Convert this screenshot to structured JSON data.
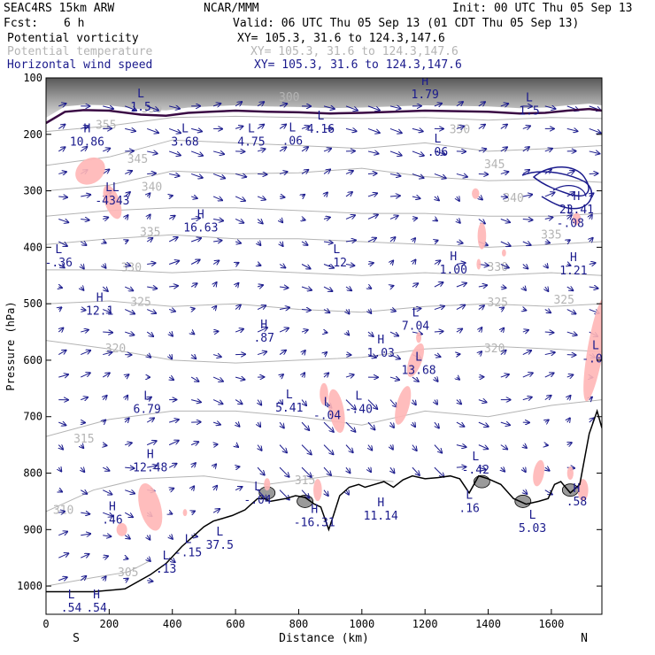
{
  "header": {
    "model": "SEAC4RS 15km ARW",
    "institution": "NCAR/MMM",
    "init": "Init: 00 UTC Thu 05 Sep 13",
    "fcst_label": "Fcst:",
    "fcst_value": "6 h",
    "valid": "Valid: 06 UTC Thu 05 Sep 13 (01 CDT Thu 05 Sep 13)"
  },
  "fields": [
    {
      "name": "Potential vorticity",
      "xy": "XY= 105.3, 31.6 to 124.3,147.6",
      "color": "#000000"
    },
    {
      "name": "Potential temperature",
      "xy": "XY= 105.3, 31.6 to 124.3,147.6",
      "color": "#b4b4b4"
    },
    {
      "name": "Horizontal wind speed",
      "xy": "XY= 105.3, 31.6 to 124.3,147.6",
      "color": "#1a1a8c"
    }
  ],
  "chart_data": {
    "type": "cross-section",
    "xlabel": "Distance (km)",
    "ylabel": "Pressure (hPa)",
    "xlim": [
      0,
      1760
    ],
    "ylim": [
      1050,
      100
    ],
    "x_ticks": [
      0,
      200,
      400,
      600,
      800,
      1000,
      1200,
      1400,
      1600
    ],
    "y_ticks": [
      100,
      200,
      300,
      400,
      500,
      600,
      700,
      800,
      900,
      1000
    ],
    "endpoint_left": "S",
    "endpoint_right": "N",
    "theta_labels": [
      {
        "text": "355",
        "x": 190,
        "p": 182
      },
      {
        "text": "350",
        "x": 335,
        "p": 153
      },
      {
        "text": "345",
        "x": 290,
        "p": 243
      },
      {
        "text": "340",
        "x": 335,
        "p": 292
      },
      {
        "text": "335",
        "x": 330,
        "p": 372
      },
      {
        "text": "330",
        "x": 270,
        "p": 435
      },
      {
        "text": "325",
        "x": 300,
        "p": 496
      },
      {
        "text": "320",
        "x": 220,
        "p": 578
      },
      {
        "text": "315",
        "x": 120,
        "p": 738
      },
      {
        "text": "310",
        "x": 55,
        "p": 864
      },
      {
        "text": "305",
        "x": 260,
        "p": 975
      },
      {
        "text": "300",
        "x": 770,
        "p": 133
      },
      {
        "text": "350",
        "x": 1310,
        "p": 190
      },
      {
        "text": "345",
        "x": 1420,
        "p": 252
      },
      {
        "text": "340",
        "x": 1480,
        "p": 312
      },
      {
        "text": "335",
        "x": 1600,
        "p": 377
      },
      {
        "text": "330",
        "x": 1430,
        "p": 434
      },
      {
        "text": "325",
        "x": 1430,
        "p": 497
      },
      {
        "text": "320",
        "x": 1420,
        "p": 578
      },
      {
        "text": "325",
        "x": 1640,
        "p": 492
      },
      {
        "text": "315",
        "x": 820,
        "p": 812
      }
    ],
    "extrema_labels": [
      {
        "letter": "H",
        "value": "10.86",
        "x": 130,
        "p": 206
      },
      {
        "letter": "L",
        "value": "3.68",
        "x": 440,
        "p": 206
      },
      {
        "letter": "L",
        "value": "4.75",
        "x": 650,
        "p": 206
      },
      {
        "letter": "L",
        "value": ".06",
        "x": 780,
        "p": 204
      },
      {
        "letter": "L",
        "value": "4.16",
        "x": 870,
        "p": 183
      },
      {
        "letter": "H",
        "value": "1.79",
        "x": 1200,
        "p": 122
      },
      {
        "letter": "L",
        "value": "1.5",
        "x": 300,
        "p": 144
      },
      {
        "letter": "L",
        "value": ".06",
        "x": 1240,
        "p": 224
      },
      {
        "letter": "L",
        "value": "1.5",
        "x": 1530,
        "p": 151
      },
      {
        "letter": "LL",
        "value": "-4343",
        "x": 210,
        "p": 310
      },
      {
        "letter": "H",
        "value": "16.63",
        "x": 490,
        "p": 358
      },
      {
        "letter": "L",
        "value": "-.36",
        "x": 40,
        "p": 420
      },
      {
        "letter": "L",
        "value": ".12",
        "x": 920,
        "p": 420
      },
      {
        "letter": "H",
        "value": "1.00",
        "x": 1290,
        "p": 432
      },
      {
        "letter": "H",
        "value": "23.41",
        "x": 1680,
        "p": 326
      },
      {
        "letter": "L",
        "value": "-.08",
        "x": 1660,
        "p": 350
      },
      {
        "letter": "H",
        "value": "1.21",
        "x": 1670,
        "p": 434
      },
      {
        "letter": "H",
        "value": "12.1",
        "x": 170,
        "p": 505
      },
      {
        "letter": "H",
        "value": ".87",
        "x": 690,
        "p": 553
      },
      {
        "letter": "L",
        "value": "7.04",
        "x": 1170,
        "p": 532
      },
      {
        "letter": "H",
        "value": "1.03",
        "x": 1060,
        "p": 580
      },
      {
        "letter": "L",
        "value": "13.68",
        "x": 1180,
        "p": 610
      },
      {
        "letter": "L",
        "value": "-.08",
        "x": 1740,
        "p": 590
      },
      {
        "letter": "L",
        "value": "6.79",
        "x": 320,
        "p": 679
      },
      {
        "letter": "L",
        "value": "5.41",
        "x": 770,
        "p": 677
      },
      {
        "letter": "L",
        "value": "-.04",
        "x": 890,
        "p": 690
      },
      {
        "letter": "L",
        "value": "-.40",
        "x": 990,
        "p": 679
      },
      {
        "letter": "H",
        "value": "12.48",
        "x": 330,
        "p": 783
      },
      {
        "letter": "L",
        "value": "-.04",
        "x": 670,
        "p": 840
      },
      {
        "letter": "H",
        "value": ".46",
        "x": 210,
        "p": 875
      },
      {
        "letter": "L",
        "value": "-.42",
        "x": 1360,
        "p": 787
      },
      {
        "letter": "L",
        "value": ".16",
        "x": 1340,
        "p": 855
      },
      {
        "letter": "H",
        "value": "-16.31",
        "x": 850,
        "p": 880
      },
      {
        "letter": "H",
        "value": "11.14",
        "x": 1060,
        "p": 868
      },
      {
        "letter": "H",
        "value": ".58",
        "x": 1680,
        "p": 843
      },
      {
        "letter": "L",
        "value": "5.03",
        "x": 1540,
        "p": 890
      },
      {
        "letter": "L",
        "value": "37.5",
        "x": 550,
        "p": 920
      },
      {
        "letter": "L",
        "value": "-.15",
        "x": 450,
        "p": 933
      },
      {
        "letter": "L",
        "value": ".13",
        "x": 380,
        "p": 962
      },
      {
        "letter": "L",
        "value": ".54",
        "x": 80,
        "p": 1031
      },
      {
        "letter": "H",
        "value": ".54",
        "x": 160,
        "p": 1031
      }
    ],
    "pv_shading_color": "#ffb6b6",
    "terrain_color": "#000000",
    "wind_color": "#1a1a8c",
    "theta_color": "#b4b4b4"
  }
}
